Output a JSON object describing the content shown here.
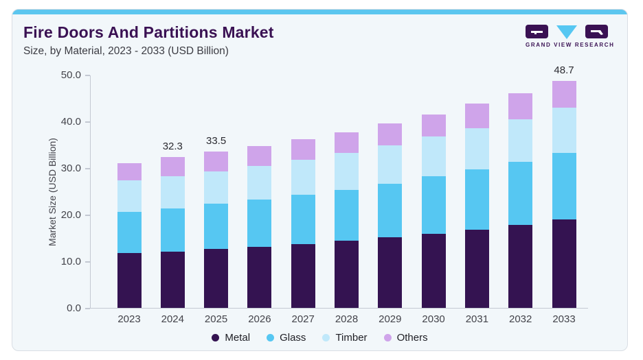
{
  "header": {
    "title": "Fire Doors And Partitions Market",
    "subtitle": "Size, by Material, 2023 - 2033 (USD Billion)",
    "logo_text": "GRAND VIEW RESEARCH"
  },
  "colors": {
    "accent_strip": "#5cc6ef",
    "card_background": "#f2f7fa",
    "card_border": "#d9dee4",
    "title_text": "#3a1153",
    "axis": "#c3c8d2",
    "logo_purple": "#3a1153",
    "logo_cyan": "#56c7f2"
  },
  "chart_data": {
    "type": "bar",
    "stacked": true,
    "title": "Fire Doors And Partitions Market",
    "subtitle": "Size, by Material, 2023 - 2033 (USD Billion)",
    "xlabel": "",
    "ylabel": "Market Size (USD Billion)",
    "ylim": [
      0,
      50
    ],
    "grid": false,
    "legend_position": "bottom",
    "y_ticks": [
      0,
      10,
      20,
      30,
      40,
      50
    ],
    "y_tick_labels": [
      "0.0",
      "10.0",
      "20.0",
      "30.0",
      "40.0",
      "50.0"
    ],
    "categories": [
      "2023",
      "2024",
      "2025",
      "2026",
      "2027",
      "2028",
      "2029",
      "2030",
      "2031",
      "2032",
      "2033"
    ],
    "series": [
      {
        "name": "Metal",
        "color": "#341351",
        "values": [
          11.7,
          12.1,
          12.6,
          13.1,
          13.7,
          14.4,
          15.1,
          15.9,
          16.8,
          17.8,
          18.9
        ]
      },
      {
        "name": "Glass",
        "color": "#56c7f2",
        "values": [
          8.9,
          9.3,
          9.7,
          10.1,
          10.6,
          10.9,
          11.5,
          12.3,
          12.9,
          13.6,
          14.4
        ]
      },
      {
        "name": "Timber",
        "color": "#c0e8fa",
        "values": [
          6.7,
          6.8,
          7.0,
          7.2,
          7.5,
          7.9,
          8.2,
          8.5,
          8.9,
          9.0,
          9.7
        ]
      },
      {
        "name": "Others",
        "color": "#cfa4ea",
        "values": [
          3.8,
          4.1,
          4.2,
          4.3,
          4.4,
          4.5,
          4.8,
          4.8,
          5.2,
          5.7,
          5.7
        ]
      }
    ],
    "totals": [
      31.1,
      32.3,
      33.5,
      34.7,
      36.2,
      37.7,
      39.6,
      41.5,
      43.8,
      46.1,
      48.7
    ],
    "bar_labels": {
      "2024": "32.3",
      "2025": "33.5",
      "2033": "48.7"
    },
    "legend": [
      "Metal",
      "Glass",
      "Timber",
      "Others"
    ]
  }
}
